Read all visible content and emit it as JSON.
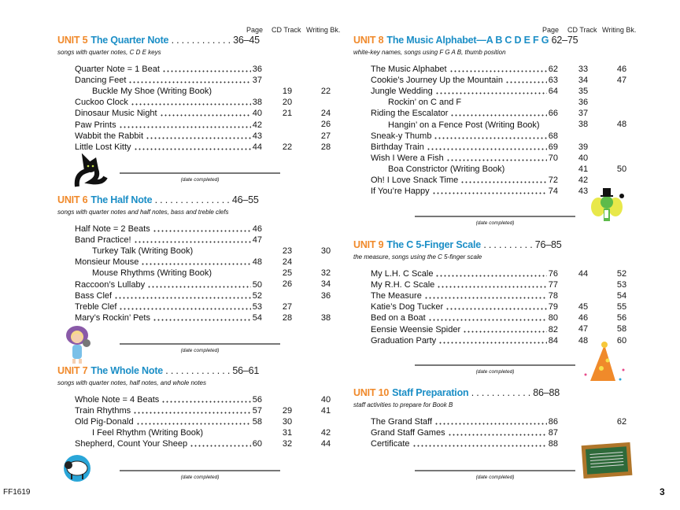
{
  "column_headers": {
    "page": "Page",
    "cd_track": "CD Track",
    "writing_bk": "Writing Bk."
  },
  "date_completed": "(date completed)",
  "units": [
    {
      "num": "UNIT 5",
      "title": "The Quarter Note",
      "leader": " . . . . . . . . . . . . ",
      "pages": "36–45",
      "subtitle": "songs with quarter notes, C D E keys",
      "rows": [
        {
          "title": "Quarter Note = 1 Beat",
          "page": "36",
          "cd": "",
          "wb": ""
        },
        {
          "title": "Dancing Feet",
          "page": "37",
          "cd": "",
          "wb": ""
        },
        {
          "title": "Buckle My Shoe (Writing Book)",
          "page": "",
          "cd": "19",
          "wb": "22",
          "indent": true
        },
        {
          "title": "Cuckoo Clock",
          "page": "38",
          "cd": "20",
          "wb": ""
        },
        {
          "title": "Dinosaur Music Night",
          "page": "40",
          "cd": "21",
          "wb": "24"
        },
        {
          "title": "Paw Prints",
          "page": "42",
          "cd": "",
          "wb": "26"
        },
        {
          "title": "Wabbit the Rabbit",
          "page": "43",
          "cd": "",
          "wb": "27"
        },
        {
          "title": "Little Lost Kitty",
          "page": "44",
          "cd": "22",
          "wb": "28"
        }
      ]
    },
    {
      "num": "UNIT 6",
      "title": "The Half Note",
      "leader": " . . . . . . . . . . . . . . . ",
      "pages": "46–55",
      "subtitle": "songs with quarter notes and half notes, bass and treble clefs",
      "rows": [
        {
          "title": "Half Note = 2 Beats",
          "page": "46",
          "cd": "",
          "wb": ""
        },
        {
          "title": "Band Practice!",
          "page": "47",
          "cd": "",
          "wb": ""
        },
        {
          "title": "Turkey Talk (Writing Book)",
          "page": "",
          "cd": "23",
          "wb": "30",
          "indent": true
        },
        {
          "title": "Monsieur Mouse",
          "page": "48",
          "cd": "24",
          "wb": ""
        },
        {
          "title": "Mouse Rhythms (Writing Book)",
          "page": "",
          "cd": "25",
          "wb": "32",
          "indent": true
        },
        {
          "title": "Raccoon’s Lullaby",
          "page": "50",
          "cd": "26",
          "wb": "34"
        },
        {
          "title": "Bass Clef",
          "page": "52",
          "cd": "",
          "wb": "36"
        },
        {
          "title": "Treble Clef",
          "page": "53",
          "cd": "27",
          "wb": ""
        },
        {
          "title": "Mary’s Rockin’ Pets",
          "page": "54",
          "cd": "28",
          "wb": "38"
        }
      ]
    },
    {
      "num": "UNIT 7",
      "title": "The Whole Note",
      "leader": " . . . . . . . . . . . . . ",
      "pages": "56–61",
      "subtitle": "songs with quarter notes, half notes, and whole notes",
      "rows": [
        {
          "title": "Whole Note = 4 Beats",
          "page": "56",
          "cd": "",
          "wb": "40"
        },
        {
          "title": "Train Rhythms",
          "page": "57",
          "cd": "29",
          "wb": "41"
        },
        {
          "title": "Old Pig-Donald",
          "page": "58",
          "cd": "30",
          "wb": ""
        },
        {
          "title": "I Feel Rhythm (Writing Book)",
          "page": "",
          "cd": "31",
          "wb": "42",
          "indent": true
        },
        {
          "title": "Shepherd, Count Your Sheep",
          "page": "60",
          "cd": "32",
          "wb": "44"
        }
      ]
    },
    {
      "num": "UNIT 8",
      "title": "The Music Alphabet—A B C D E F G",
      "leader": " ",
      "pages": "62–75",
      "subtitle": "white-key names, songs using F G A B, thumb position",
      "rows": [
        {
          "title": "The Music Alphabet",
          "page": "62",
          "cd": "33",
          "wb": "46"
        },
        {
          "title": "Cookie’s Journey Up the Mountain",
          "page": "63",
          "cd": "34",
          "wb": "47"
        },
        {
          "title": "Jungle Wedding",
          "page": "64",
          "cd": "35",
          "wb": ""
        },
        {
          "title": "Rockin’ on C and F",
          "page": "",
          "cd": "36",
          "wb": "",
          "indent": true
        },
        {
          "title": "Riding the Escalator",
          "page": "66",
          "cd": "37",
          "wb": ""
        },
        {
          "title": "Hangin’ on a Fence Post (Writing Book)",
          "page": "",
          "cd": "38",
          "wb": "48",
          "indent": true
        },
        {
          "title": "Sneak-y Thumb",
          "page": "68",
          "cd": "",
          "wb": ""
        },
        {
          "title": "Birthday Train",
          "page": "69",
          "cd": "39",
          "wb": ""
        },
        {
          "title": "Wish I Were a Fish",
          "page": "70",
          "cd": "40",
          "wb": ""
        },
        {
          "title": "Boa Constrictor (Writing Book)",
          "page": "",
          "cd": "41",
          "wb": "50",
          "indent": true
        },
        {
          "title": "Oh! I Love Snack Time",
          "page": "72",
          "cd": "42",
          "wb": ""
        },
        {
          "title": "If You’re Happy",
          "page": "74",
          "cd": "43",
          "wb": ""
        }
      ]
    },
    {
      "num": "UNIT 9",
      "title": "The C 5-Finger Scale",
      "leader": " . . . . . . . . . . ",
      "pages": "76–85",
      "subtitle": "the measure, songs using the C 5-finger scale",
      "rows": [
        {
          "title": "My L.H. C Scale",
          "page": "76",
          "cd": "44",
          "wb": "52"
        },
        {
          "title": "My R.H. C Scale",
          "page": "77",
          "cd": "",
          "wb": "53"
        },
        {
          "title": "The Measure",
          "page": "78",
          "cd": "",
          "wb": "54"
        },
        {
          "title": "Katie’s Dog Tucker",
          "page": "79",
          "cd": "45",
          "wb": "55"
        },
        {
          "title": "Bed on a Boat",
          "page": "80",
          "cd": "46",
          "wb": "56"
        },
        {
          "title": "Eensie Weensie Spider",
          "page": "82",
          "cd": "47",
          "wb": "58"
        },
        {
          "title": "Graduation Party",
          "page": "84",
          "cd": "48",
          "wb": "60"
        }
      ]
    },
    {
      "num": "UNIT 10",
      "title": "Staff Preparation",
      "leader": " . . . . . . . . . . . . ",
      "pages": "86–88",
      "subtitle": "staff activities to prepare for Book B",
      "rows": [
        {
          "title": "The Grand Staff",
          "page": "86",
          "cd": "",
          "wb": "62"
        },
        {
          "title": "Grand Staff Games",
          "page": "87",
          "cd": "",
          "wb": ""
        },
        {
          "title": "Certificate",
          "page": "88",
          "cd": "",
          "wb": ""
        }
      ]
    }
  ],
  "footer": {
    "code": "FF1619",
    "page_number": "3"
  },
  "colors": {
    "unit_number": "#f0892a",
    "unit_title": "#1b8ec6"
  }
}
